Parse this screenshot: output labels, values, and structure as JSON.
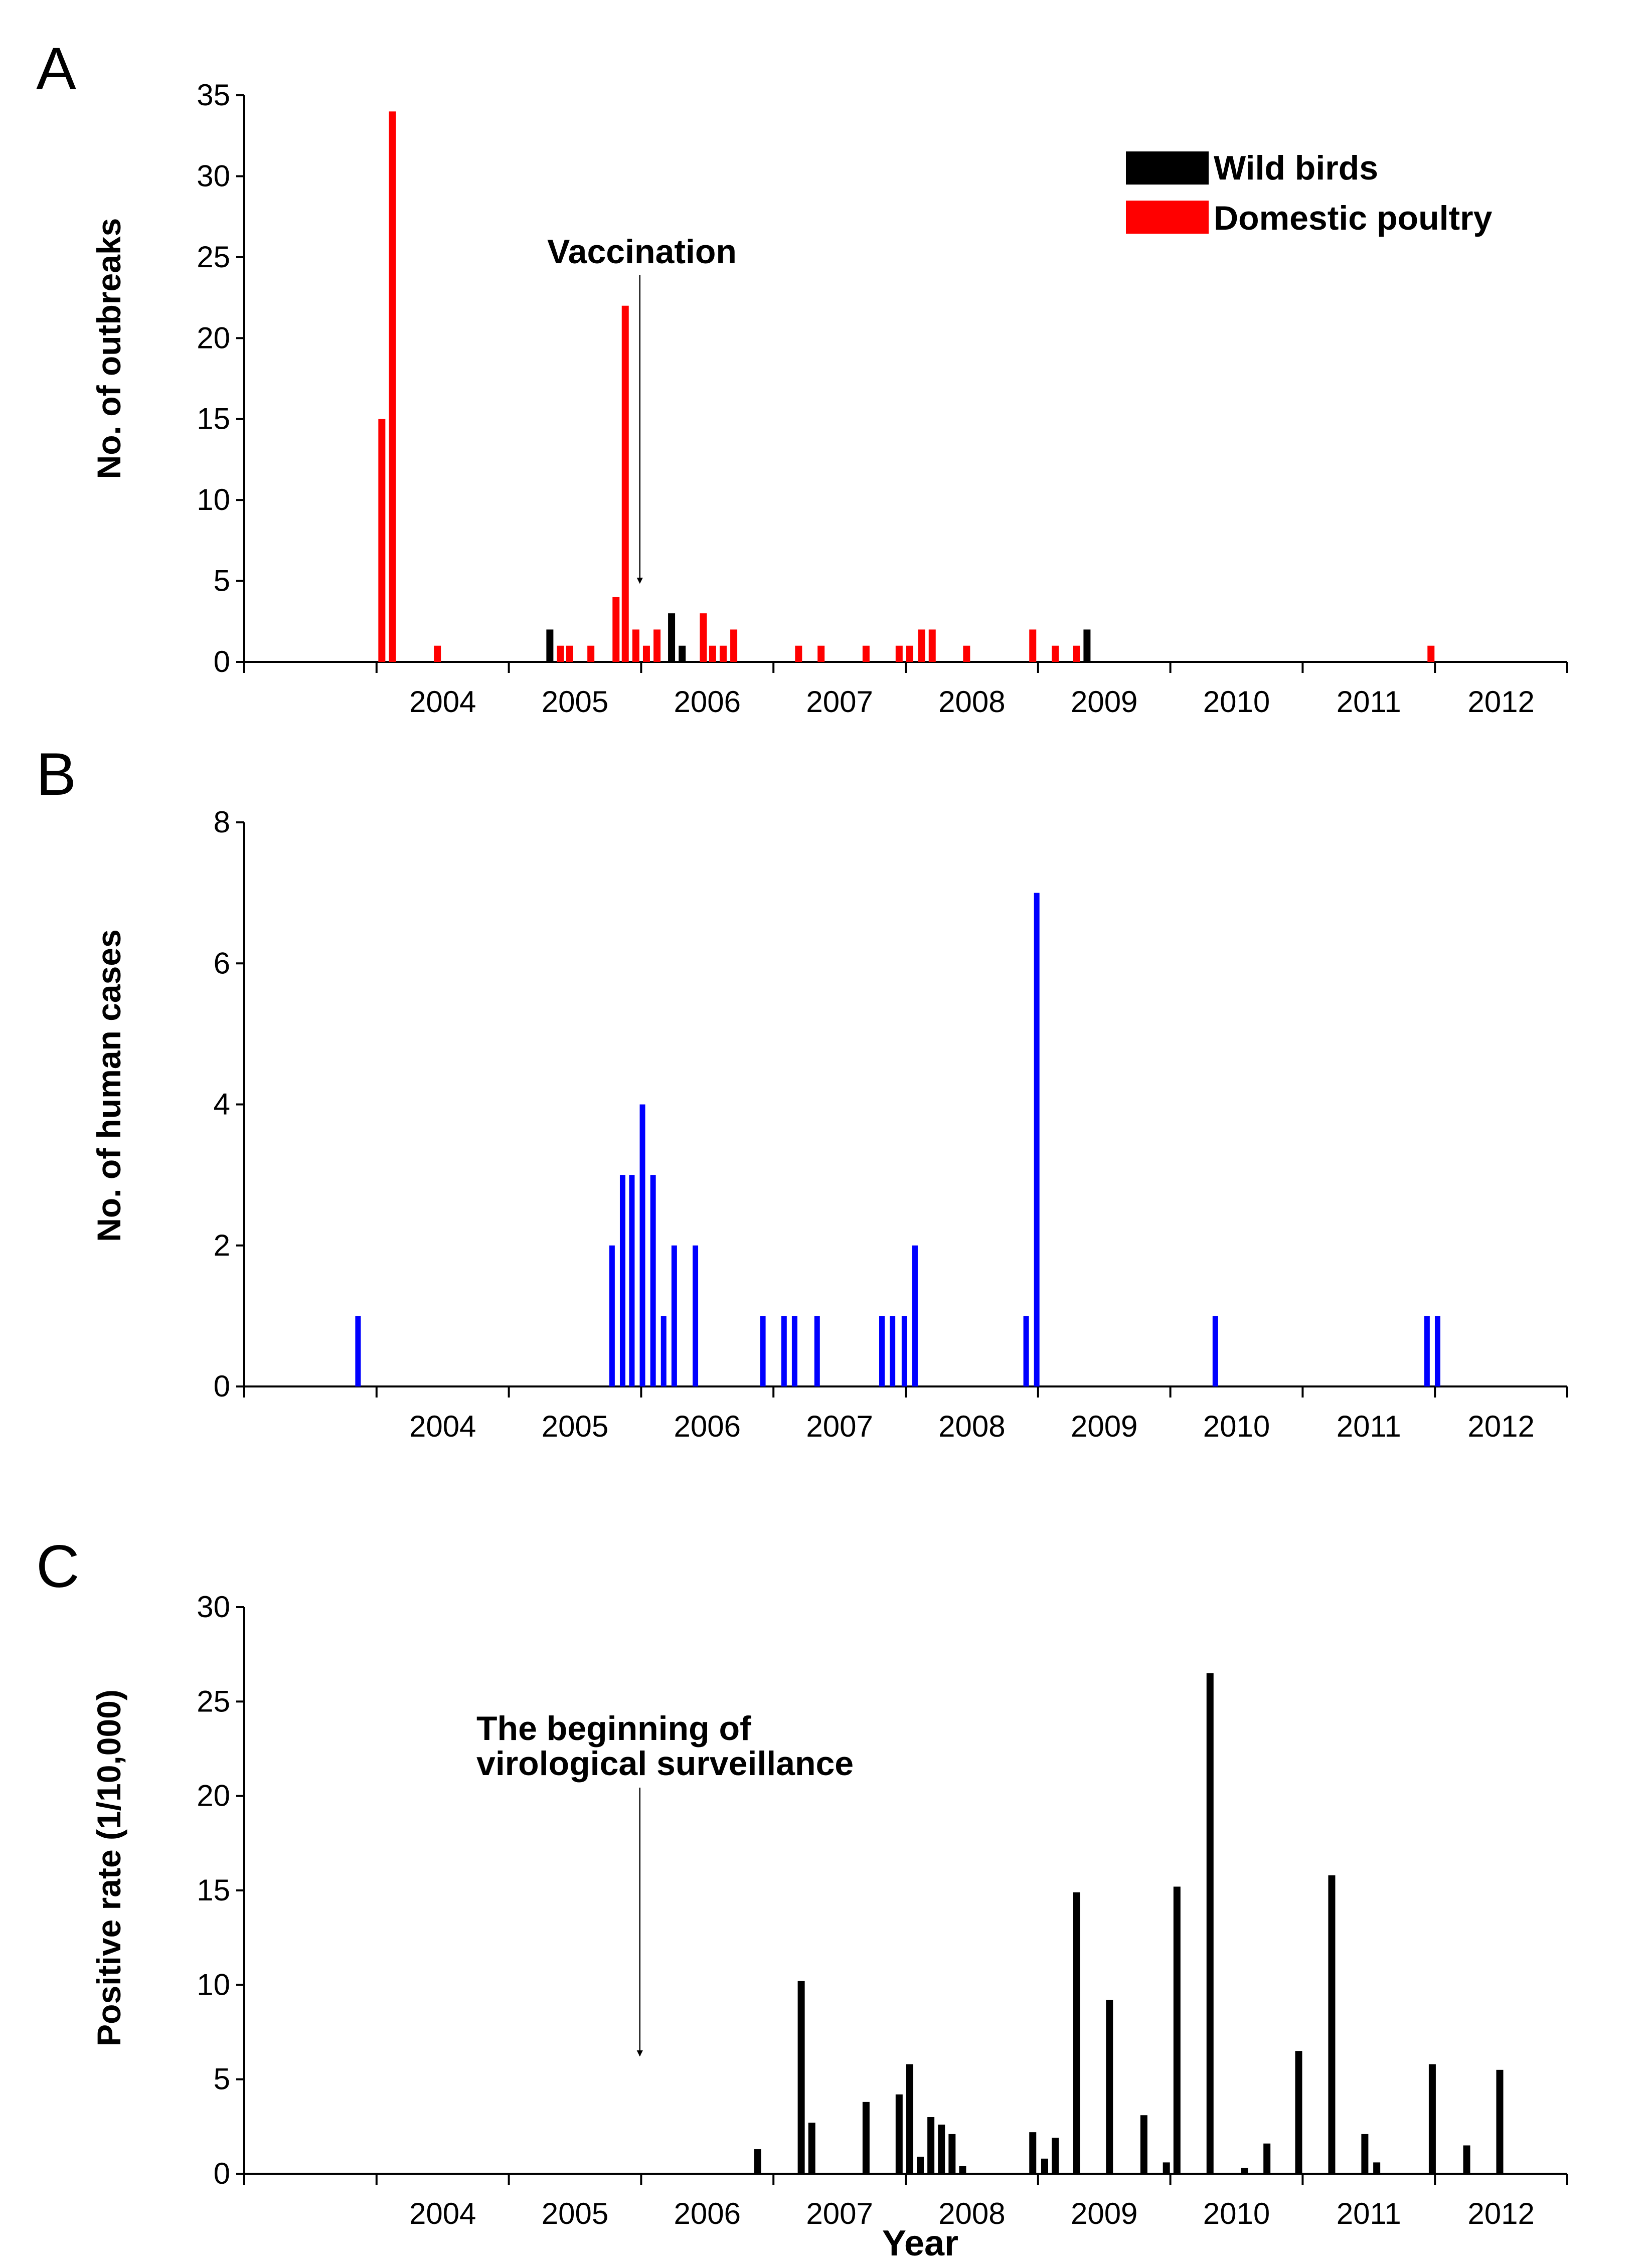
{
  "colors": {
    "wild": "#000000",
    "poultry": "#ff0000",
    "human": "#0000ff",
    "rate": "#000000"
  },
  "chart_data": [
    {
      "panel": "A",
      "type": "bar",
      "xlabel": "",
      "ylabel": "No. of outbreaks",
      "ylim": [
        0,
        35
      ],
      "yticks": [
        0,
        5,
        10,
        15,
        20,
        25,
        30,
        35
      ],
      "xlim": [
        2003.0,
        2013.0
      ],
      "year_labels": [
        "2004",
        "2005",
        "2006",
        "2007",
        "2008",
        "2009",
        "2010",
        "2011",
        "2012"
      ],
      "legend": {
        "position": "top-right",
        "entries": [
          "Wild birds",
          "Domestic poultry"
        ]
      },
      "annotation": {
        "text": "Vaccination",
        "x": 2005.99
      },
      "series": [
        {
          "name": "Domestic poultry",
          "color_key": "poultry",
          "points": [
            {
              "x": 2004.04,
              "y": 15
            },
            {
              "x": 2004.12,
              "y": 34
            },
            {
              "x": 2004.46,
              "y": 1
            },
            {
              "x": 2005.39,
              "y": 1
            },
            {
              "x": 2005.46,
              "y": 1
            },
            {
              "x": 2005.62,
              "y": 1
            },
            {
              "x": 2005.81,
              "y": 4
            },
            {
              "x": 2005.88,
              "y": 22
            },
            {
              "x": 2005.96,
              "y": 2
            },
            {
              "x": 2006.04,
              "y": 1
            },
            {
              "x": 2006.12,
              "y": 2
            },
            {
              "x": 2006.47,
              "y": 3
            },
            {
              "x": 2006.54,
              "y": 1
            },
            {
              "x": 2006.62,
              "y": 1
            },
            {
              "x": 2006.7,
              "y": 2
            },
            {
              "x": 2007.19,
              "y": 1
            },
            {
              "x": 2007.36,
              "y": 1
            },
            {
              "x": 2007.7,
              "y": 1
            },
            {
              "x": 2007.95,
              "y": 1
            },
            {
              "x": 2008.03,
              "y": 1
            },
            {
              "x": 2008.12,
              "y": 2
            },
            {
              "x": 2008.2,
              "y": 2
            },
            {
              "x": 2008.46,
              "y": 1
            },
            {
              "x": 2008.96,
              "y": 2
            },
            {
              "x": 2009.13,
              "y": 1
            },
            {
              "x": 2009.29,
              "y": 1
            },
            {
              "x": 2011.97,
              "y": 1
            }
          ]
        },
        {
          "name": "Wild birds",
          "color_key": "wild",
          "points": [
            {
              "x": 2005.31,
              "y": 2
            },
            {
              "x": 2006.23,
              "y": 3
            },
            {
              "x": 2006.31,
              "y": 1
            },
            {
              "x": 2009.37,
              "y": 2
            }
          ]
        }
      ]
    },
    {
      "panel": "B",
      "type": "bar",
      "xlabel": "",
      "ylabel": "No. of human cases",
      "ylim": [
        0,
        8
      ],
      "yticks": [
        0,
        2,
        4,
        6,
        8
      ],
      "xlim": [
        2003.0,
        2013.0
      ],
      "year_labels": [
        "2004",
        "2005",
        "2006",
        "2007",
        "2008",
        "2009",
        "2010",
        "2011",
        "2012"
      ],
      "series": [
        {
          "name": "Human cases",
          "color_key": "human",
          "points": [
            {
              "x": 2003.86,
              "y": 1
            },
            {
              "x": 2005.78,
              "y": 2
            },
            {
              "x": 2005.86,
              "y": 3
            },
            {
              "x": 2005.93,
              "y": 3
            },
            {
              "x": 2006.01,
              "y": 4
            },
            {
              "x": 2006.09,
              "y": 3
            },
            {
              "x": 2006.17,
              "y": 1
            },
            {
              "x": 2006.25,
              "y": 2
            },
            {
              "x": 2006.41,
              "y": 2
            },
            {
              "x": 2006.92,
              "y": 1
            },
            {
              "x": 2007.08,
              "y": 1
            },
            {
              "x": 2007.16,
              "y": 1
            },
            {
              "x": 2007.33,
              "y": 1
            },
            {
              "x": 2007.82,
              "y": 1
            },
            {
              "x": 2007.9,
              "y": 1
            },
            {
              "x": 2007.99,
              "y": 1
            },
            {
              "x": 2008.07,
              "y": 2
            },
            {
              "x": 2008.91,
              "y": 1
            },
            {
              "x": 2008.99,
              "y": 7
            },
            {
              "x": 2010.34,
              "y": 1
            },
            {
              "x": 2011.94,
              "y": 1
            },
            {
              "x": 2012.02,
              "y": 1
            }
          ]
        }
      ]
    },
    {
      "panel": "C",
      "type": "bar",
      "xlabel": "Year",
      "ylabel": "Positive rate (1/10,000)",
      "ylim": [
        0,
        30
      ],
      "yticks": [
        0,
        5,
        10,
        15,
        20,
        25,
        30
      ],
      "xlim": [
        2003.0,
        2013.0
      ],
      "year_labels": [
        "2004",
        "2005",
        "2006",
        "2007",
        "2008",
        "2009",
        "2010",
        "2011",
        "2012"
      ],
      "annotation": {
        "lines": [
          "The beginning of",
          "virological surveillance"
        ],
        "x": 2005.99
      },
      "series": [
        {
          "name": "Positive rate",
          "color_key": "rate",
          "points": [
            {
              "x": 2006.88,
              "y": 1.3
            },
            {
              "x": 2007.21,
              "y": 10.2
            },
            {
              "x": 2007.29,
              "y": 2.7
            },
            {
              "x": 2007.7,
              "y": 3.8
            },
            {
              "x": 2007.95,
              "y": 4.2
            },
            {
              "x": 2008.03,
              "y": 5.8
            },
            {
              "x": 2008.11,
              "y": 0.9
            },
            {
              "x": 2008.19,
              "y": 3.0
            },
            {
              "x": 2008.27,
              "y": 2.6
            },
            {
              "x": 2008.35,
              "y": 2.1
            },
            {
              "x": 2008.43,
              "y": 0.4
            },
            {
              "x": 2008.96,
              "y": 2.2
            },
            {
              "x": 2009.05,
              "y": 0.8
            },
            {
              "x": 2009.13,
              "y": 1.9
            },
            {
              "x": 2009.29,
              "y": 14.9
            },
            {
              "x": 2009.54,
              "y": 9.2
            },
            {
              "x": 2009.8,
              "y": 3.1
            },
            {
              "x": 2009.97,
              "y": 0.6
            },
            {
              "x": 2010.05,
              "y": 15.2
            },
            {
              "x": 2010.3,
              "y": 26.5
            },
            {
              "x": 2010.56,
              "y": 0.3
            },
            {
              "x": 2010.73,
              "y": 1.6
            },
            {
              "x": 2010.97,
              "y": 6.5
            },
            {
              "x": 2011.22,
              "y": 15.8
            },
            {
              "x": 2011.47,
              "y": 2.1
            },
            {
              "x": 2011.56,
              "y": 0.6
            },
            {
              "x": 2011.98,
              "y": 5.8
            },
            {
              "x": 2012.24,
              "y": 1.5
            },
            {
              "x": 2012.49,
              "y": 5.5
            }
          ]
        }
      ]
    }
  ]
}
